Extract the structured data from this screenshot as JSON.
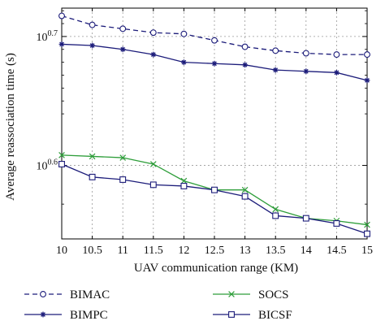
{
  "chart_data": {
    "type": "line",
    "xlabel": "UAV communication range (KM)",
    "ylabel": "Average reassociation time (s)",
    "y_scale": "log10",
    "xlim": [
      10,
      15
    ],
    "ylim_exponent": [
      0.543,
      0.722
    ],
    "x": [
      10,
      10.5,
      11,
      11.5,
      12,
      12.5,
      13,
      13.5,
      14,
      14.5,
      15
    ],
    "x_tick_labels": [
      "10",
      "10.5",
      "11",
      "11.5",
      "12",
      "12.5",
      "13",
      "13.5",
      "14",
      "14.5",
      "15"
    ],
    "y_ticks": [
      {
        "base": "10",
        "exp": "0.7",
        "exponent": 0.7
      },
      {
        "base": "10",
        "exp": "0.6",
        "exponent": 0.6
      }
    ],
    "grid": true,
    "legend_position": "bottom",
    "series": [
      {
        "name": "BIMAC",
        "color": "#1c1c7a",
        "dash": "6,4",
        "marker": "circle",
        "exponents": [
          0.716,
          0.709,
          0.706,
          0.703,
          0.702,
          0.697,
          0.692,
          0.689,
          0.687,
          0.686,
          0.686
        ]
      },
      {
        "name": "BIMPC",
        "color": "#1c1c7a",
        "dash": "",
        "marker": "star",
        "exponents": [
          0.694,
          0.693,
          0.69,
          0.686,
          0.68,
          0.679,
          0.678,
          0.674,
          0.673,
          0.672,
          0.666
        ]
      },
      {
        "name": "SOCS",
        "color": "#2e9e3a",
        "dash": "",
        "marker": "x",
        "exponents": [
          0.608,
          0.607,
          0.606,
          0.601,
          0.588,
          0.581,
          0.581,
          0.566,
          0.559,
          0.557,
          0.554
        ]
      },
      {
        "name": "BICSF",
        "color": "#1c1c7a",
        "dash": "",
        "marker": "square",
        "exponents": [
          0.601,
          0.591,
          0.589,
          0.585,
          0.584,
          0.581,
          0.576,
          0.561,
          0.559,
          0.555,
          0.547
        ]
      }
    ]
  }
}
